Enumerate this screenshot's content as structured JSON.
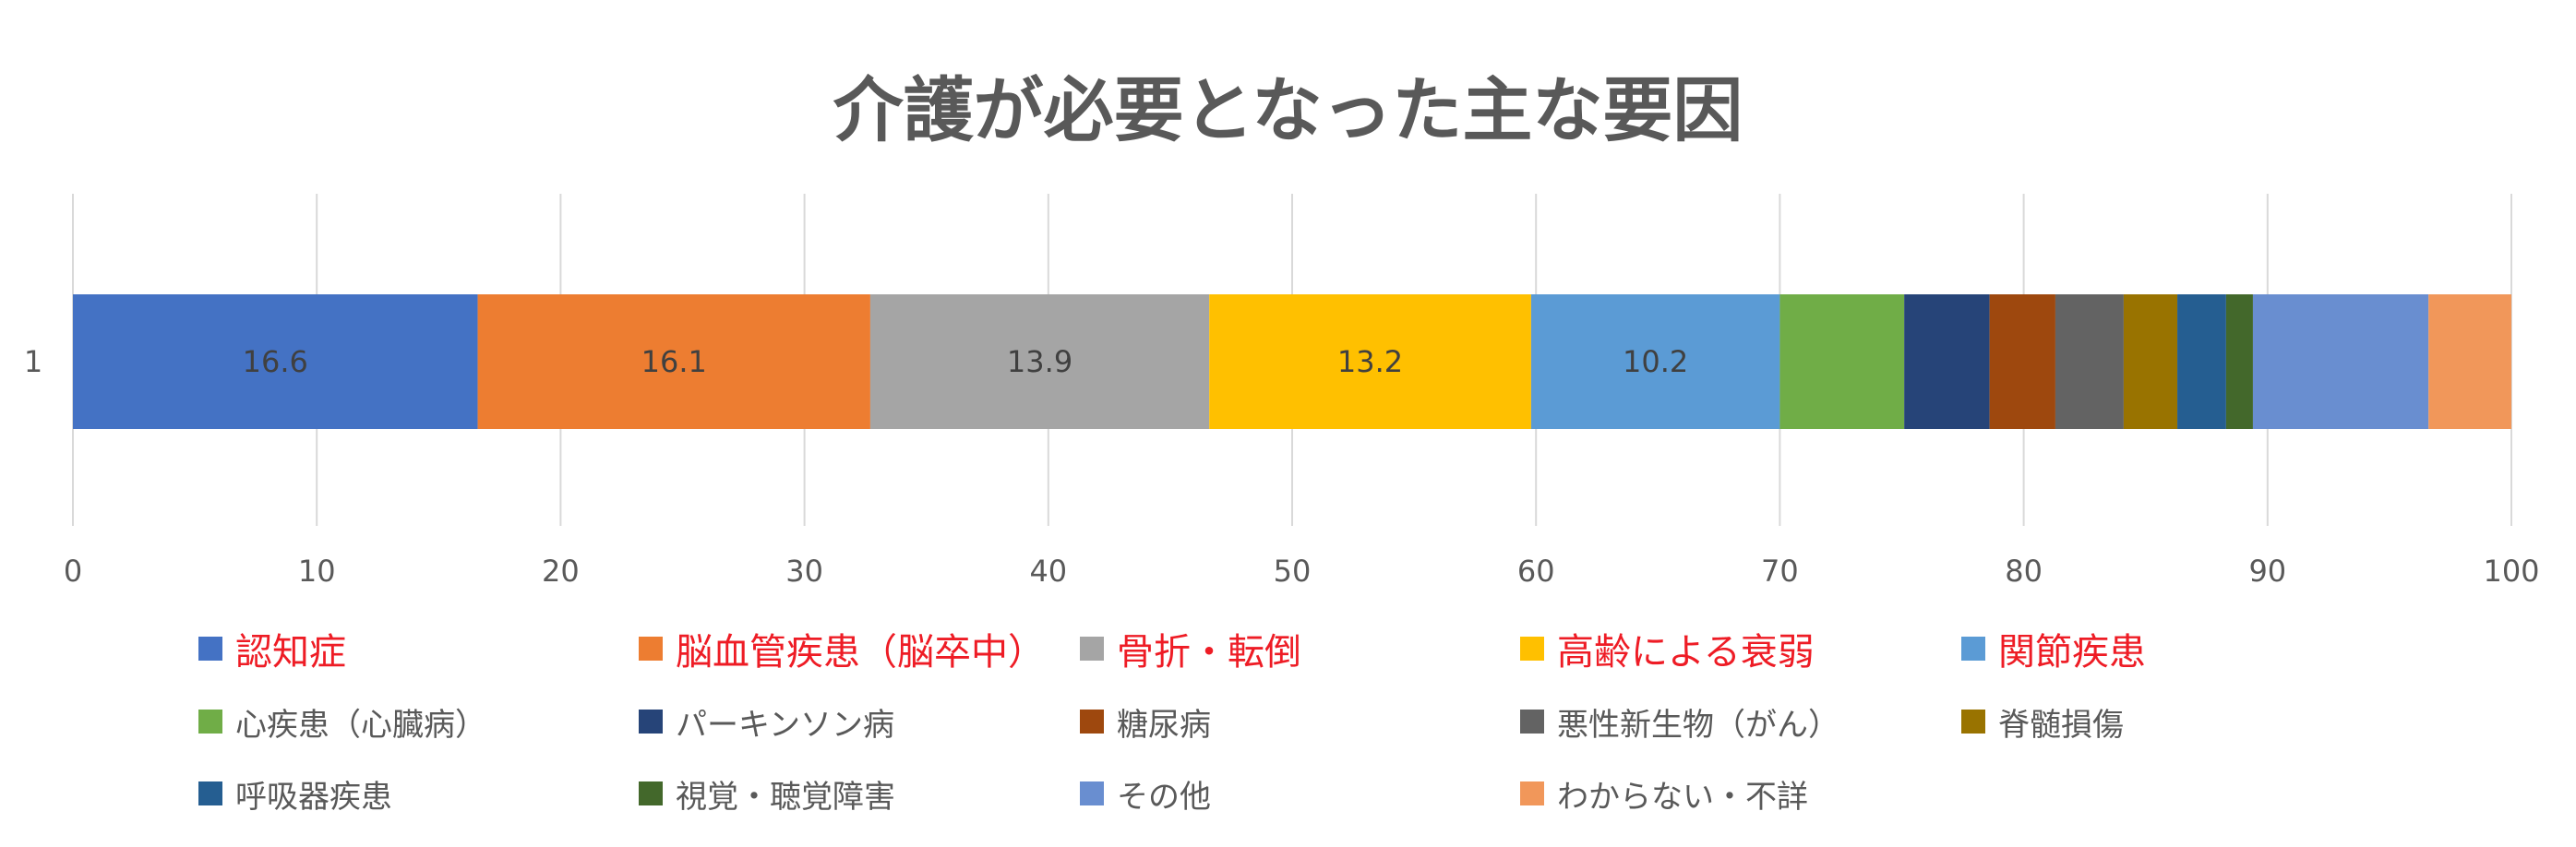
{
  "chart_data": {
    "type": "bar",
    "orientation": "horizontal",
    "stacked": true,
    "title": "介護が必要となった主な要因",
    "categories": [
      "1"
    ],
    "xlim": [
      0,
      100
    ],
    "x_ticks": [
      0,
      10,
      20,
      30,
      40,
      50,
      60,
      70,
      80,
      90,
      100
    ],
    "grid": "vertical",
    "legend_position": "bottom",
    "series": [
      {
        "name": "認知症",
        "values": [
          16.6
        ],
        "color": "#4472c4",
        "label": "16.6",
        "emphasized": true
      },
      {
        "name": "脳血管疾患（脳卒中）",
        "values": [
          16.1
        ],
        "color": "#ed7d31",
        "label": "16.1",
        "emphasized": true
      },
      {
        "name": "骨折・転倒",
        "values": [
          13.9
        ],
        "color": "#a5a5a5",
        "label": "13.9",
        "emphasized": true
      },
      {
        "name": "高齢による衰弱",
        "values": [
          13.2
        ],
        "color": "#ffc000",
        "label": "13.2",
        "emphasized": true
      },
      {
        "name": "関節疾患",
        "values": [
          10.2
        ],
        "color": "#5b9bd5",
        "label": "10.2",
        "emphasized": true
      },
      {
        "name": "心疾患（心臓病）",
        "values": [
          5.1
        ],
        "color": "#70ad47",
        "label": "",
        "emphasized": false
      },
      {
        "name": "パーキンソン病",
        "values": [
          3.5
        ],
        "color": "#264478",
        "label": "",
        "emphasized": false
      },
      {
        "name": "糖尿病",
        "values": [
          2.7
        ],
        "color": "#9e480e",
        "label": "",
        "emphasized": false
      },
      {
        "name": "悪性新生物（がん）",
        "values": [
          2.8
        ],
        "color": "#636363",
        "label": "",
        "emphasized": false
      },
      {
        "name": "脊髄損傷",
        "values": [
          2.2
        ],
        "color": "#997300",
        "label": "",
        "emphasized": false
      },
      {
        "name": "呼吸器疾患",
        "values": [
          2.0
        ],
        "color": "#255e91",
        "label": "",
        "emphasized": false
      },
      {
        "name": "視覚・聴覚障害",
        "values": [
          1.1
        ],
        "color": "#43682b",
        "label": "",
        "emphasized": false
      },
      {
        "name": "その他",
        "values": [
          7.2
        ],
        "color": "#698ed0",
        "label": "",
        "emphasized": false
      },
      {
        "name": "わからない・不詳",
        "values": [
          3.4
        ],
        "color": "#f1975a",
        "label": "",
        "emphasized": false
      }
    ]
  }
}
